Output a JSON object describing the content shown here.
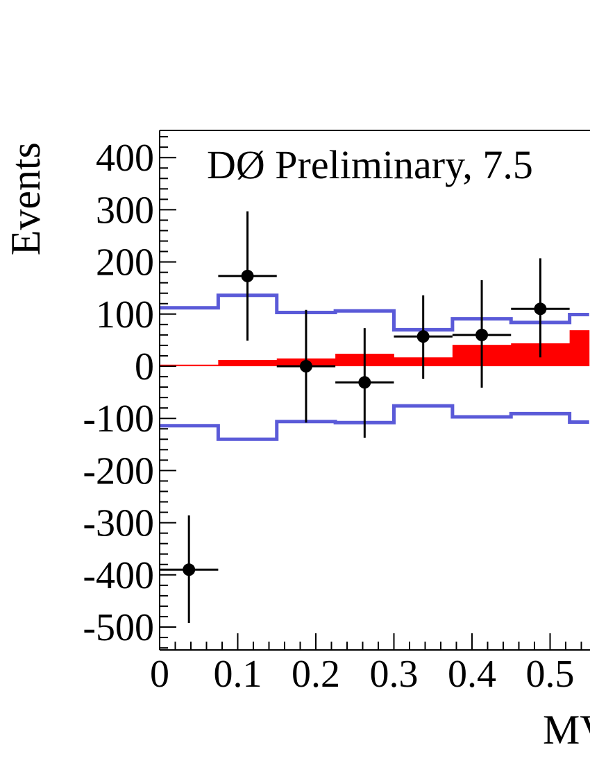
{
  "chart_data": {
    "type": "histogram",
    "annotation": "DØ Preliminary, 7.5",
    "ylabel": "Events",
    "xlabel": "MV",
    "xlim": [
      0,
      0.55
    ],
    "ylim": [
      -540,
      450
    ],
    "x_ticks": [
      0,
      0.1,
      0.2,
      0.3,
      0.4,
      0.5
    ],
    "x_tick_labels": [
      "0",
      "0.1",
      "0.2",
      "0.3",
      "0.4",
      "0.5"
    ],
    "y_ticks": [
      400,
      300,
      200,
      100,
      0,
      -100,
      -200,
      -300,
      -400,
      -500
    ],
    "y_tick_labels": [
      "400",
      "300",
      "200",
      "100",
      "0",
      "-100",
      "-200",
      "-300",
      "-400",
      "-500"
    ],
    "bin_edges": [
      0,
      0.075,
      0.15,
      0.225,
      0.3,
      0.375,
      0.45,
      0.525,
      0.55
    ],
    "signal": {
      "color": "#ff0000",
      "values": [
        3,
        12,
        15,
        24,
        17,
        41,
        44,
        69
      ]
    },
    "uncertainty_band": {
      "color": "#5a5ad8",
      "upper": [
        112,
        136,
        103,
        106,
        70,
        91,
        84,
        99
      ],
      "lower": [
        -114,
        -140,
        -106,
        -108,
        -76,
        -97,
        -91,
        -107
      ]
    },
    "data_points": {
      "color": "#000000",
      "x": [
        0.0375,
        0.1125,
        0.1875,
        0.2625,
        0.3375,
        0.4125,
        0.4875
      ],
      "x_halfwidth": 0.0375,
      "y": [
        -390,
        173,
        0,
        -31,
        57,
        60,
        110
      ],
      "yerr_low": [
        102,
        124,
        108,
        106,
        81,
        101,
        93
      ],
      "yerr_high": [
        104,
        124,
        108,
        104,
        79,
        105,
        97
      ]
    }
  }
}
